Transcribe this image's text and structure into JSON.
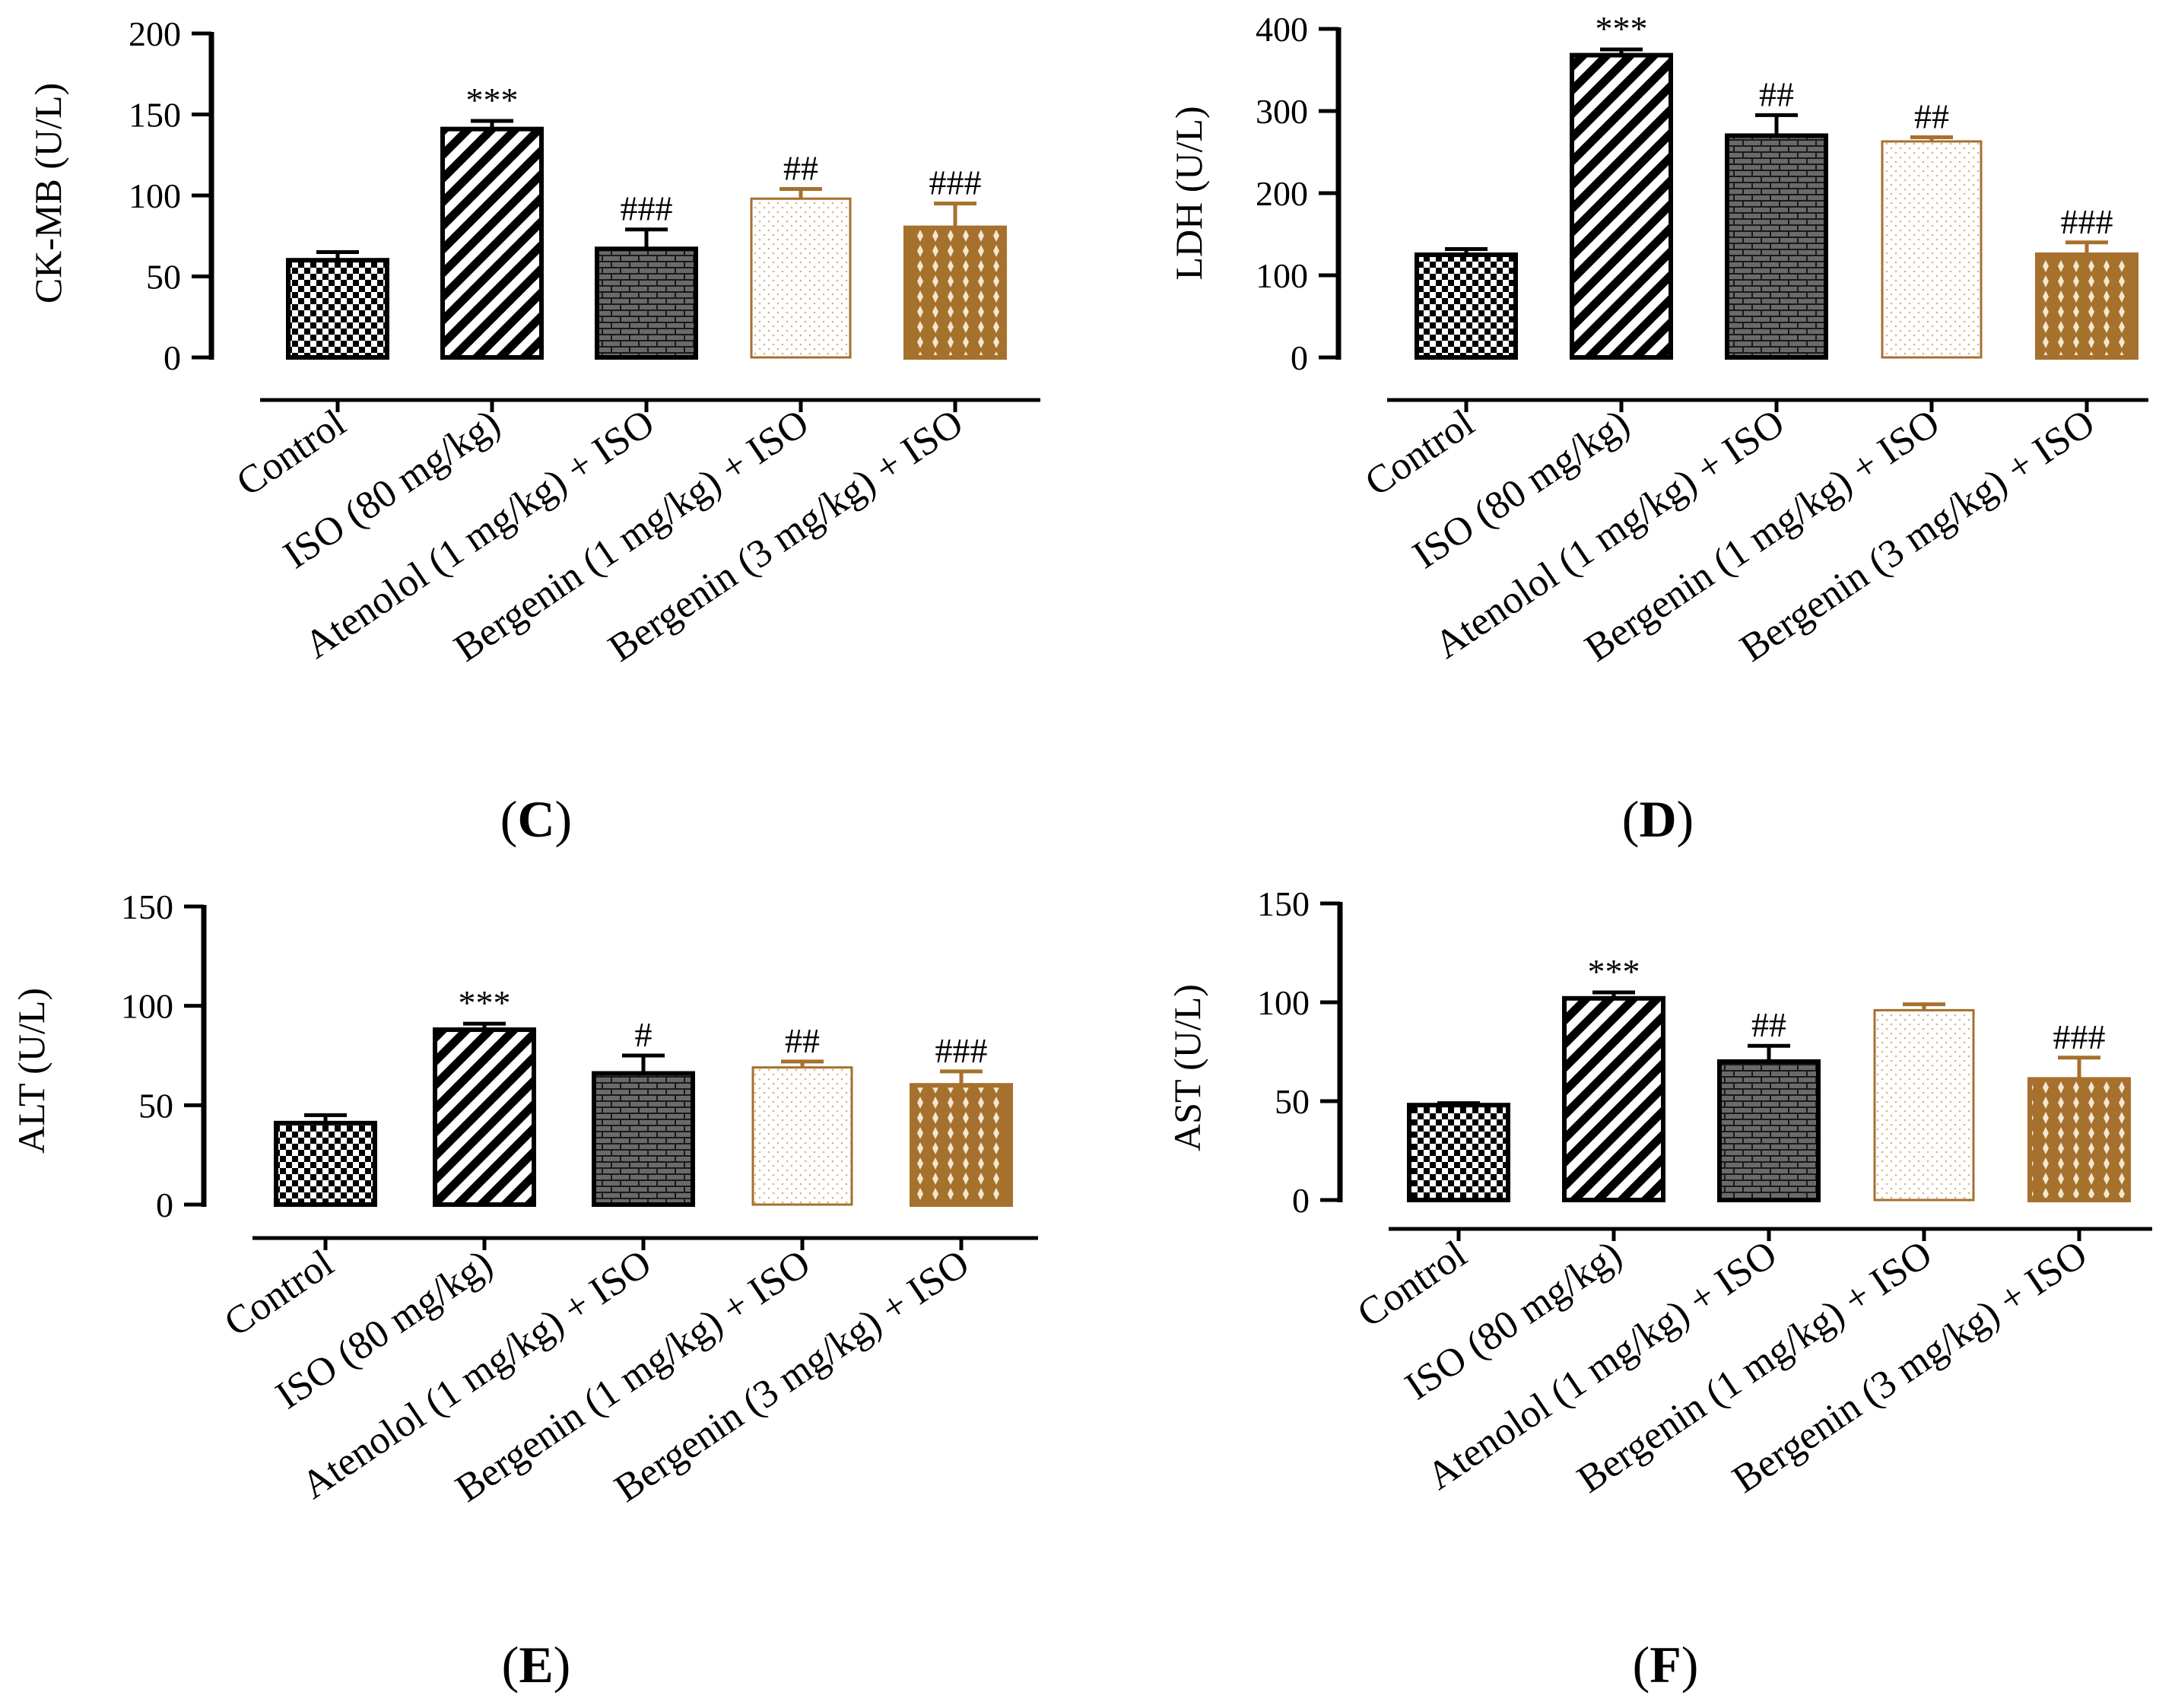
{
  "figure": {
    "panel_letters": [
      "C",
      "D",
      "E",
      "F"
    ]
  },
  "colors": {
    "black": "#000000",
    "brown": "#a6702d",
    "light_brown": "#c89a5e"
  },
  "categories": [
    "Control",
    "ISO (80 mg/kg)",
    "Atenolol (1 mg/kg) + ISO",
    "Bergenin (1 mg/kg) + ISO",
    "Bergenin (3 mg/kg) + ISO"
  ],
  "chart_data": [
    {
      "panel": "C",
      "type": "bar",
      "ylabel": "CK-MB (U/L)",
      "ylim": [
        0,
        200
      ],
      "yticks": [
        0,
        50,
        100,
        150,
        200
      ],
      "categories": [
        "Control",
        "ISO (80 mg/kg)",
        "Atenolol (1 mg/kg) + ISO",
        "Bergenin (1 mg/kg) + ISO",
        "Bergenin (3 mg/kg) + ISO"
      ],
      "values": [
        60,
        141,
        67,
        98,
        80
      ],
      "errors": [
        5,
        5,
        12,
        6,
        15
      ],
      "annotations": [
        "",
        "***",
        "###",
        "##",
        "###"
      ]
    },
    {
      "panel": "D",
      "type": "bar",
      "ylabel": "LDH (U/L)",
      "ylim": [
        0,
        400
      ],
      "yticks": [
        0,
        100,
        200,
        300,
        400
      ],
      "categories": [
        "Control",
        "ISO (80 mg/kg)",
        "Atenolol (1 mg/kg) + ISO",
        "Bergenin (1 mg/kg) + ISO",
        "Bergenin (3 mg/kg) + ISO"
      ],
      "values": [
        125,
        368,
        270,
        263,
        125
      ],
      "errors": [
        7,
        7,
        25,
        5,
        15
      ],
      "annotations": [
        "",
        "***",
        "##",
        "##",
        "###"
      ]
    },
    {
      "panel": "E",
      "type": "bar",
      "ylabel": "ALT (U/L)",
      "ylim": [
        0,
        150
      ],
      "yticks": [
        0,
        50,
        100,
        150
      ],
      "categories": [
        "Control",
        "ISO (80 mg/kg)",
        "Atenolol (1 mg/kg) + ISO",
        "Bergenin (1 mg/kg) + ISO",
        "Bergenin (3 mg/kg) + ISO"
      ],
      "values": [
        41,
        88,
        66,
        69,
        60
      ],
      "errors": [
        4,
        3,
        9,
        3,
        7
      ],
      "annotations": [
        "",
        "***",
        "#",
        "##",
        "###"
      ]
    },
    {
      "panel": "F",
      "type": "bar",
      "ylabel": "AST (U/L)",
      "ylim": [
        0,
        150
      ],
      "yticks": [
        0,
        50,
        100,
        150
      ],
      "categories": [
        "Control",
        "ISO (80 mg/kg)",
        "Atenolol (1 mg/kg) + ISO",
        "Bergenin (1 mg/kg) + ISO",
        "Bergenin (3 mg/kg) + ISO"
      ],
      "values": [
        48,
        102,
        70,
        96,
        61
      ],
      "errors": [
        1,
        3,
        8,
        3,
        11
      ],
      "annotations": [
        "",
        "***",
        "##",
        "",
        "###"
      ]
    }
  ]
}
